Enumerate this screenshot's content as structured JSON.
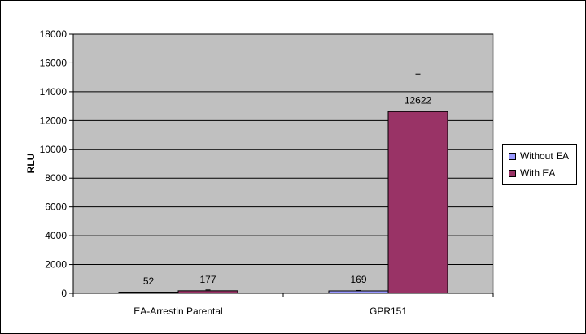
{
  "chart_data": {
    "type": "bar",
    "categories": [
      "EA-Arrestin Parental",
      "GPR151"
    ],
    "series": [
      {
        "name": "Without EA",
        "values": [
          52,
          169
        ],
        "errors": [
          30,
          30
        ],
        "color": "#9999FF",
        "labels": [
          "52",
          "169"
        ]
      },
      {
        "name": "With EA",
        "values": [
          177,
          12622
        ],
        "errors": [
          60,
          2600
        ],
        "color": "#993366",
        "labels": [
          "177",
          "12622"
        ]
      }
    ],
    "ylabel": "RLU",
    "xlabel": "",
    "ylim": [
      0,
      18000
    ],
    "yticks": [
      "0",
      "2000",
      "4000",
      "6000",
      "8000",
      "10000",
      "12000",
      "14000",
      "16000",
      "18000"
    ],
    "grid": true,
    "plot_background": "#C0C0C0",
    "legend_position": "right"
  }
}
